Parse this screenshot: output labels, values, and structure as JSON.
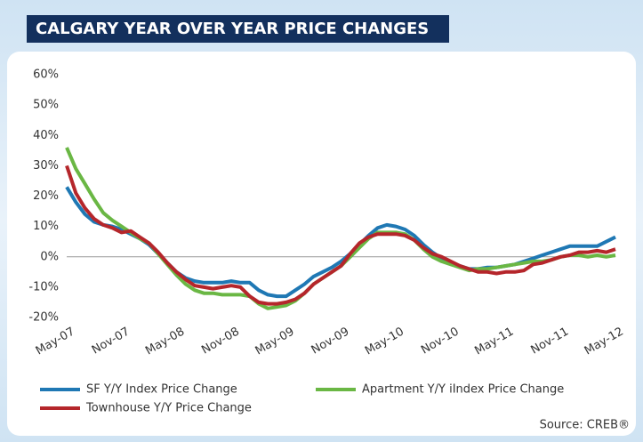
{
  "chart_data": {
    "type": "line",
    "title": "CALGARY YEAR OVER YEAR PRICE CHANGES",
    "source": "Source: CREB®",
    "categories": [
      "May-07",
      null,
      null,
      null,
      null,
      null,
      "Nov-07",
      null,
      null,
      null,
      null,
      null,
      "May-08",
      null,
      null,
      null,
      null,
      null,
      "Nov-08",
      null,
      null,
      null,
      null,
      null,
      "May-09",
      null,
      null,
      null,
      null,
      null,
      "Nov-09",
      null,
      null,
      null,
      null,
      null,
      "May-10",
      null,
      null,
      null,
      null,
      null,
      "Nov-10",
      null,
      null,
      null,
      null,
      null,
      "May-11",
      null,
      null,
      null,
      null,
      null,
      "Nov-11",
      null,
      null,
      null,
      null,
      null,
      "May-12"
    ],
    "series": [
      {
        "name": "SF Y/Y Index Price Change",
        "color": "#1f78b4",
        "values": [
          23,
          18,
          14,
          11.5,
          10.5,
          10,
          9,
          7.5,
          6,
          4,
          1,
          -2,
          -5,
          -7,
          -8,
          -8.5,
          -8.5,
          -8.5,
          -8,
          -8.5,
          -8.5,
          -11,
          -12.5,
          -13,
          -13,
          -11,
          -9,
          -6.5,
          -5,
          -3.5,
          -1.5,
          1,
          4,
          7,
          9.5,
          10.5,
          10,
          9,
          7,
          4,
          1.5,
          -0.5,
          -2,
          -3,
          -4,
          -4,
          -3.5,
          -3.5,
          -3,
          -2.5,
          -1.5,
          -0.5,
          0.5,
          1.5,
          2.5,
          3.5,
          3.5,
          3.5,
          3.5,
          5,
          6.5
        ]
      },
      {
        "name": "Apartment Y/Y iIndex Price Change",
        "color": "#6ab744",
        "values": [
          36,
          29,
          24,
          19,
          14.5,
          12,
          10,
          8,
          6,
          4.5,
          1,
          -2.5,
          -6,
          -9,
          -11,
          -12,
          -12,
          -12.5,
          -12.5,
          -12.5,
          -13,
          -15.5,
          -17,
          -16.5,
          -16,
          -14.5,
          -12,
          -9,
          -7,
          -5,
          -3,
          0,
          3,
          6,
          8,
          8,
          8,
          7.5,
          5.5,
          2.5,
          0,
          -1.5,
          -2.5,
          -3.5,
          -4.5,
          -4,
          -4,
          -3.5,
          -3,
          -2.5,
          -2,
          -1.5,
          -1.5,
          -1,
          0,
          0.5,
          0.5,
          0,
          0.5,
          0,
          0.5
        ]
      },
      {
        "name": "Townhouse Y/Y Price Change",
        "color": "#b5262b",
        "values": [
          30,
          21,
          16,
          12.5,
          10.5,
          9.5,
          8,
          8.5,
          6.5,
          4.5,
          1.5,
          -2,
          -5,
          -7.5,
          -9.5,
          -10,
          -10.5,
          -10,
          -9.5,
          -10,
          -13,
          -15,
          -15.5,
          -15.5,
          -15,
          -14,
          -12,
          -9,
          -7,
          -5,
          -3,
          1,
          4.5,
          6.5,
          7.5,
          7.5,
          7.5,
          7,
          5.5,
          3,
          1,
          0,
          -1.5,
          -3,
          -4,
          -5,
          -5,
          -5.5,
          -5,
          -5,
          -4.5,
          -2.5,
          -2,
          -1,
          0,
          0.5,
          1.5,
          1.5,
          2,
          1.5,
          2.5
        ]
      }
    ],
    "ylim": [
      -20,
      60
    ],
    "yticks": [
      {
        "value": -20,
        "label": "-20%"
      },
      {
        "value": -10,
        "label": "-10%"
      },
      {
        "value": 0,
        "label": "0%"
      },
      {
        "value": 10,
        "label": "10%"
      },
      {
        "value": 20,
        "label": "20%"
      },
      {
        "value": 30,
        "label": "30%"
      },
      {
        "value": 40,
        "label": "40%"
      },
      {
        "value": 50,
        "label": "50%"
      },
      {
        "value": 60,
        "label": "60%"
      }
    ],
    "grid": false
  }
}
